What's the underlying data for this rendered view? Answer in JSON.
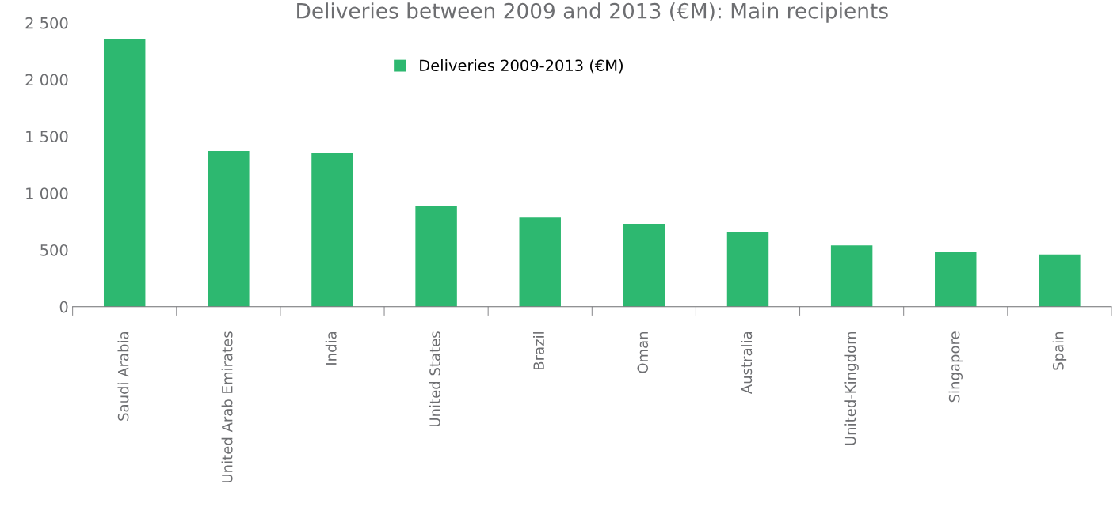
{
  "chart_data": {
    "type": "bar",
    "title": "Deliveries between 2009 and 2013 (€M): Main recipients",
    "categories": [
      "Saudi Arabia",
      "United Arab Emirates",
      "India",
      "United States",
      "Brazil",
      "Oman",
      "Australia",
      "United-Kingdom",
      "Singapore",
      "Spain"
    ],
    "series": [
      {
        "name": "Deliveries 2009-2013 (€M)",
        "color": "#2db870",
        "values": [
          2360,
          1370,
          1350,
          890,
          790,
          730,
          660,
          540,
          480,
          460
        ]
      }
    ],
    "ylim": [
      0,
      2500
    ],
    "yticks": [
      0,
      500,
      {
        "value": 1000,
        "label": "1 000"
      },
      {
        "value": 1500,
        "label": "1 500"
      },
      {
        "value": 2000,
        "label": "2 000"
      },
      {
        "value": 2500,
        "label": "2 500"
      }
    ],
    "grid": false,
    "legend": "top"
  }
}
